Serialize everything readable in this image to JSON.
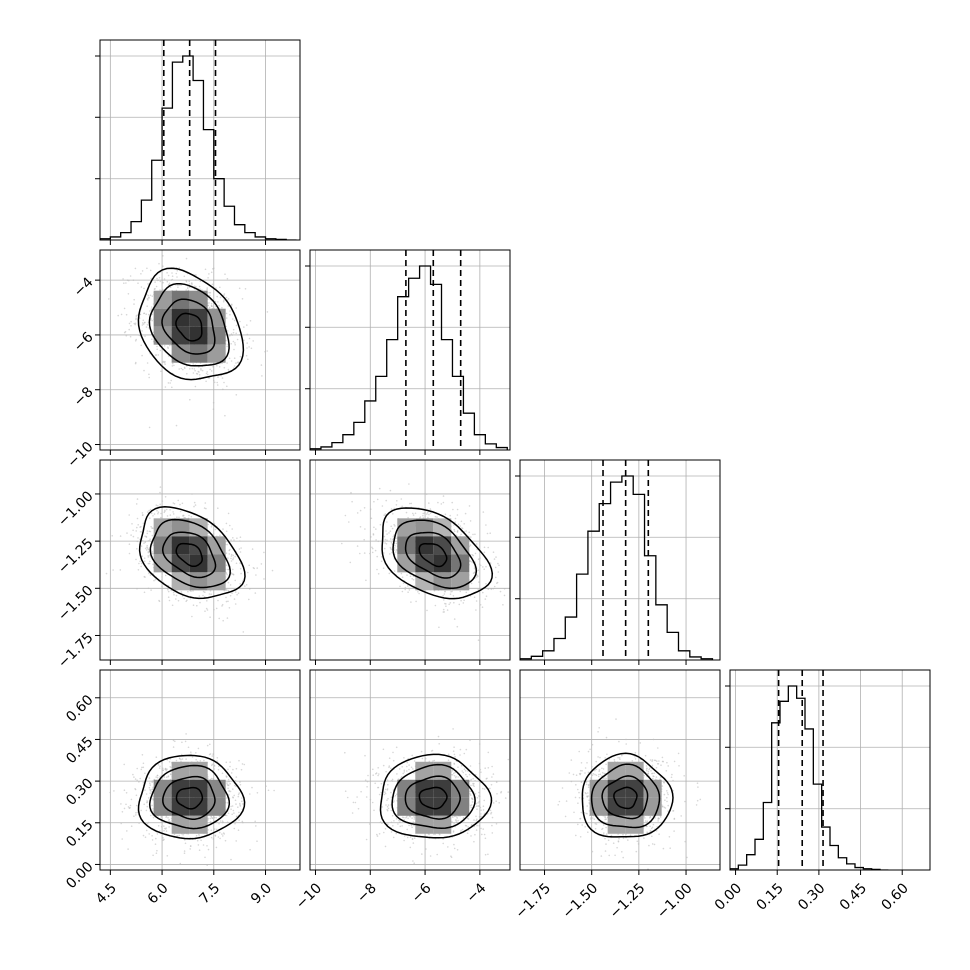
{
  "chart_data": {
    "type": "corner",
    "title": "",
    "n_params": 4,
    "grid": true,
    "colors": {
      "line": "#000000",
      "grid": "#b0b0b0",
      "scatter": "#bdbdbd"
    },
    "params": [
      {
        "label": "",
        "range": [
          4.2,
          10.0
        ],
        "ticks": [
          4.5,
          6.0,
          7.5,
          9.0
        ],
        "tick_labels": [
          "4.5",
          "6.0",
          "7.5",
          "9.0"
        ],
        "mean": 6.8,
        "sd": 0.75,
        "quantiles": [
          6.05,
          6.8,
          7.55
        ],
        "hist_bin_edges": [
          4.2,
          4.5,
          4.8,
          5.1,
          5.4,
          5.7,
          6.0,
          6.3,
          6.6,
          6.9,
          7.2,
          7.5,
          7.8,
          8.1,
          8.4,
          8.7,
          9.0,
          9.3,
          9.6,
          9.9
        ],
        "hist_counts": [
          2,
          5,
          12,
          30,
          65,
          130,
          215,
          290,
          300,
          260,
          180,
          100,
          55,
          25,
          12,
          5,
          2,
          1,
          0
        ]
      },
      {
        "label": "",
        "range": [
          -10.2,
          -2.9
        ],
        "ticks": [
          -10,
          -8,
          -6,
          -4
        ],
        "tick_labels": [
          "−10",
          "−8",
          "−6",
          "−4"
        ],
        "mean": -5.7,
        "sd": 1.0,
        "quantiles": [
          -6.7,
          -5.7,
          -4.7
        ],
        "hist_bin_edges": [
          -10.2,
          -9.8,
          -9.4,
          -9.0,
          -8.6,
          -8.2,
          -7.8,
          -7.4,
          -7.0,
          -6.6,
          -6.2,
          -5.8,
          -5.4,
          -5.0,
          -4.6,
          -4.2,
          -3.8,
          -3.4,
          -3.0
        ],
        "hist_counts": [
          2,
          5,
          12,
          25,
          45,
          80,
          120,
          180,
          250,
          280,
          300,
          270,
          180,
          120,
          60,
          25,
          10,
          4
        ]
      },
      {
        "label": "",
        "range": [
          -1.88,
          -0.82
        ],
        "ticks": [
          -1.75,
          -1.5,
          -1.25,
          -1.0
        ],
        "tick_labels": [
          "−1.75",
          "−1.50",
          "−1.25",
          "−1.00"
        ],
        "mean": -1.32,
        "sd": 0.12,
        "quantiles": [
          -1.44,
          -1.32,
          -1.2
        ],
        "hist_bin_edges": [
          -1.88,
          -1.82,
          -1.76,
          -1.7,
          -1.64,
          -1.58,
          -1.52,
          -1.46,
          -1.4,
          -1.34,
          -1.28,
          -1.22,
          -1.16,
          -1.1,
          -1.04,
          -0.98,
          -0.92,
          -0.86
        ],
        "hist_counts": [
          2,
          6,
          15,
          35,
          70,
          140,
          210,
          255,
          290,
          300,
          270,
          170,
          90,
          45,
          15,
          5,
          2
        ]
      },
      {
        "label": "",
        "range": [
          -0.02,
          0.7
        ],
        "ticks": [
          0.0,
          0.15,
          0.3,
          0.45,
          0.6
        ],
        "tick_labels": [
          "0.00",
          "0.15",
          "0.30",
          "0.45",
          "0.60"
        ],
        "mean": 0.24,
        "sd": 0.075,
        "quantiles": [
          0.155,
          0.24,
          0.315
        ],
        "hist_bin_edges": [
          -0.02,
          0.01,
          0.04,
          0.07,
          0.1,
          0.13,
          0.16,
          0.19,
          0.22,
          0.25,
          0.28,
          0.31,
          0.34,
          0.37,
          0.4,
          0.43,
          0.46,
          0.49,
          0.52,
          0.55
        ],
        "hist_counts": [
          2,
          8,
          25,
          50,
          110,
          240,
          275,
          300,
          280,
          230,
          140,
          70,
          40,
          20,
          10,
          4,
          2,
          1,
          0
        ]
      }
    ],
    "correlations": [
      {
        "pair": [
          1,
          0
        ],
        "rho": -0.25
      },
      {
        "pair": [
          2,
          0
        ],
        "rho": -0.35
      },
      {
        "pair": [
          2,
          1
        ],
        "rho": -0.4
      },
      {
        "pair": [
          3,
          0
        ],
        "rho": 0.0
      },
      {
        "pair": [
          3,
          1
        ],
        "rho": 0.0
      },
      {
        "pair": [
          3,
          2
        ],
        "rho": 0.0
      }
    ],
    "contour_levels_sigma": [
      0.5,
      1.0,
      1.5,
      2.0
    ]
  }
}
